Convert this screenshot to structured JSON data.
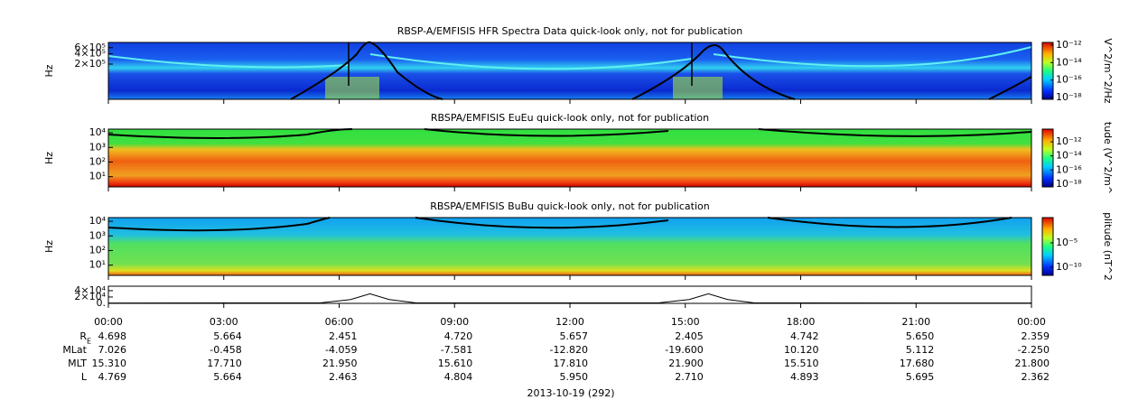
{
  "chart_data": [
    {
      "type": "spectrogram",
      "title": "RBSP-A/EMFISIS  HFR Spectra Data quick-look only, not for publication",
      "ylabel": "Hz",
      "log_y": true,
      "ylim": [
        19000,
        850000
      ],
      "yticks": [
        {
          "value": 200000,
          "label": "2×10⁵"
        },
        {
          "value": 400000,
          "label": "4×10⁵"
        },
        {
          "value": 600000,
          "label": "6×10⁵"
        }
      ],
      "colorbar_label": "V^2/m^2/Hz",
      "clim": [
        -18.2,
        -11.7
      ],
      "cticks": [
        {
          "value": -12,
          "label": "10⁻¹²"
        },
        {
          "value": -14,
          "label": "10⁻¹⁴"
        },
        {
          "value": -16,
          "label": "10⁻¹⁶"
        },
        {
          "value": -18,
          "label": "10⁻¹⁸"
        }
      ]
    },
    {
      "type": "spectrogram",
      "title": "RBSPA/EMFISIS  EuEu quick-look only, not for publication",
      "ylabel": "Hz",
      "log_y": true,
      "ylim": [
        2,
        17800
      ],
      "yticks": [
        {
          "value": 10,
          "label": "10¹"
        },
        {
          "value": 100,
          "label": "10²"
        },
        {
          "value": 1000,
          "label": "10³"
        },
        {
          "value": 10000,
          "label": "10⁴"
        }
      ],
      "colorbar_label": "tude (V^2/m^",
      "clim": [
        -18.4,
        -10.2
      ],
      "cticks": [
        {
          "value": -12,
          "label": "10⁻¹²"
        },
        {
          "value": -14,
          "label": "10⁻¹⁴"
        },
        {
          "value": -16,
          "label": "10⁻¹⁶"
        },
        {
          "value": -18,
          "label": "10⁻¹⁸"
        }
      ]
    },
    {
      "type": "spectrogram",
      "title": "RBSPA/EMFISIS  BuBu quick-look only, not for publication",
      "ylabel": "Hz",
      "log_y": true,
      "ylim": [
        2,
        17800
      ],
      "yticks": [
        {
          "value": 10,
          "label": "10¹"
        },
        {
          "value": 100,
          "label": "10²"
        },
        {
          "value": 1000,
          "label": "10³"
        },
        {
          "value": 10000,
          "label": "10⁴"
        }
      ],
      "colorbar_label": "plitude (nT^2",
      "clim": [
        -11.7,
        0.2
      ],
      "cticks": [
        {
          "value": -5,
          "label": "10⁻⁵"
        },
        {
          "value": -10,
          "label": "10⁻¹⁰"
        }
      ]
    },
    {
      "type": "line",
      "ylim": [
        0,
        54000
      ],
      "yticks": [
        {
          "value": 0,
          "label": "0."
        },
        {
          "value": 20000,
          "label": "2×10⁴"
        },
        {
          "value": 40000,
          "label": "4×10⁴"
        }
      ],
      "x": [
        0,
        5.5,
        6.3,
        6.8,
        7.3,
        8,
        14.3,
        15.1,
        15.6,
        16.1,
        16.8,
        24
      ],
      "series": [
        {
          "color": "#000000",
          "values": [
            1000,
            1500,
            12000,
            30000,
            12000,
            1500,
            1500,
            12000,
            30000,
            12000,
            1500,
            1000
          ]
        }
      ]
    }
  ],
  "time_axis": {
    "xlim": [
      0,
      24
    ],
    "xticks": [
      {
        "value": 0,
        "label": "00:00"
      },
      {
        "value": 3,
        "label": "03:00"
      },
      {
        "value": 6,
        "label": "06:00"
      },
      {
        "value": 9,
        "label": "09:00"
      },
      {
        "value": 12,
        "label": "12:00"
      },
      {
        "value": 15,
        "label": "15:00"
      },
      {
        "value": 18,
        "label": "18:00"
      },
      {
        "value": 21,
        "label": "21:00"
      },
      {
        "value": 24,
        "label": "00:00"
      }
    ],
    "date": "2013-10-19 (292)"
  },
  "ephemeris": [
    {
      "label": "R",
      "subscript": "E",
      "values": [
        "4.698",
        "5.664",
        "2.451",
        "4.720",
        "5.657",
        "2.405",
        "4.742",
        "5.650",
        "2.359"
      ]
    },
    {
      "label": "MLat",
      "values": [
        "7.026",
        "-0.458",
        "-4.059",
        "-7.581",
        "-12.820",
        "-19.600",
        "10.120",
        "5.112",
        "-2.250"
      ]
    },
    {
      "label": "MLT",
      "values": [
        "15.310",
        "17.710",
        "21.950",
        "15.610",
        "17.810",
        "21.900",
        "15.510",
        "17.680",
        "21.800"
      ]
    },
    {
      "label": "L",
      "values": [
        "4.769",
        "5.664",
        "2.463",
        "4.804",
        "5.950",
        "2.710",
        "4.893",
        "5.695",
        "2.362"
      ]
    }
  ]
}
